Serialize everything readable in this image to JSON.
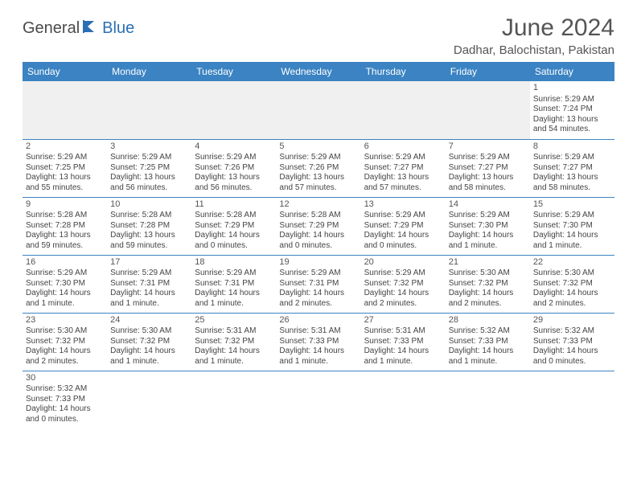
{
  "logo": {
    "text1": "General",
    "text2": "Blue"
  },
  "title": "June 2024",
  "location": "Dadhar, Balochistan, Pakistan",
  "colors": {
    "header_bg": "#3b83c2",
    "header_text": "#ffffff",
    "border": "#3b83c2",
    "text": "#444444",
    "logo_gray": "#4a4a4a",
    "logo_blue": "#2a6fb5",
    "empty_bg": "#f0f0f0"
  },
  "weekdays": [
    "Sunday",
    "Monday",
    "Tuesday",
    "Wednesday",
    "Thursday",
    "Friday",
    "Saturday"
  ],
  "grid": [
    [
      null,
      null,
      null,
      null,
      null,
      null,
      {
        "day": "1",
        "sunrise": "Sunrise: 5:29 AM",
        "sunset": "Sunset: 7:24 PM",
        "daylight": "Daylight: 13 hours and 54 minutes."
      }
    ],
    [
      {
        "day": "2",
        "sunrise": "Sunrise: 5:29 AM",
        "sunset": "Sunset: 7:25 PM",
        "daylight": "Daylight: 13 hours and 55 minutes."
      },
      {
        "day": "3",
        "sunrise": "Sunrise: 5:29 AM",
        "sunset": "Sunset: 7:25 PM",
        "daylight": "Daylight: 13 hours and 56 minutes."
      },
      {
        "day": "4",
        "sunrise": "Sunrise: 5:29 AM",
        "sunset": "Sunset: 7:26 PM",
        "daylight": "Daylight: 13 hours and 56 minutes."
      },
      {
        "day": "5",
        "sunrise": "Sunrise: 5:29 AM",
        "sunset": "Sunset: 7:26 PM",
        "daylight": "Daylight: 13 hours and 57 minutes."
      },
      {
        "day": "6",
        "sunrise": "Sunrise: 5:29 AM",
        "sunset": "Sunset: 7:27 PM",
        "daylight": "Daylight: 13 hours and 57 minutes."
      },
      {
        "day": "7",
        "sunrise": "Sunrise: 5:29 AM",
        "sunset": "Sunset: 7:27 PM",
        "daylight": "Daylight: 13 hours and 58 minutes."
      },
      {
        "day": "8",
        "sunrise": "Sunrise: 5:29 AM",
        "sunset": "Sunset: 7:27 PM",
        "daylight": "Daylight: 13 hours and 58 minutes."
      }
    ],
    [
      {
        "day": "9",
        "sunrise": "Sunrise: 5:28 AM",
        "sunset": "Sunset: 7:28 PM",
        "daylight": "Daylight: 13 hours and 59 minutes."
      },
      {
        "day": "10",
        "sunrise": "Sunrise: 5:28 AM",
        "sunset": "Sunset: 7:28 PM",
        "daylight": "Daylight: 13 hours and 59 minutes."
      },
      {
        "day": "11",
        "sunrise": "Sunrise: 5:28 AM",
        "sunset": "Sunset: 7:29 PM",
        "daylight": "Daylight: 14 hours and 0 minutes."
      },
      {
        "day": "12",
        "sunrise": "Sunrise: 5:28 AM",
        "sunset": "Sunset: 7:29 PM",
        "daylight": "Daylight: 14 hours and 0 minutes."
      },
      {
        "day": "13",
        "sunrise": "Sunrise: 5:29 AM",
        "sunset": "Sunset: 7:29 PM",
        "daylight": "Daylight: 14 hours and 0 minutes."
      },
      {
        "day": "14",
        "sunrise": "Sunrise: 5:29 AM",
        "sunset": "Sunset: 7:30 PM",
        "daylight": "Daylight: 14 hours and 1 minute."
      },
      {
        "day": "15",
        "sunrise": "Sunrise: 5:29 AM",
        "sunset": "Sunset: 7:30 PM",
        "daylight": "Daylight: 14 hours and 1 minute."
      }
    ],
    [
      {
        "day": "16",
        "sunrise": "Sunrise: 5:29 AM",
        "sunset": "Sunset: 7:30 PM",
        "daylight": "Daylight: 14 hours and 1 minute."
      },
      {
        "day": "17",
        "sunrise": "Sunrise: 5:29 AM",
        "sunset": "Sunset: 7:31 PM",
        "daylight": "Daylight: 14 hours and 1 minute."
      },
      {
        "day": "18",
        "sunrise": "Sunrise: 5:29 AM",
        "sunset": "Sunset: 7:31 PM",
        "daylight": "Daylight: 14 hours and 1 minute."
      },
      {
        "day": "19",
        "sunrise": "Sunrise: 5:29 AM",
        "sunset": "Sunset: 7:31 PM",
        "daylight": "Daylight: 14 hours and 2 minutes."
      },
      {
        "day": "20",
        "sunrise": "Sunrise: 5:29 AM",
        "sunset": "Sunset: 7:32 PM",
        "daylight": "Daylight: 14 hours and 2 minutes."
      },
      {
        "day": "21",
        "sunrise": "Sunrise: 5:30 AM",
        "sunset": "Sunset: 7:32 PM",
        "daylight": "Daylight: 14 hours and 2 minutes."
      },
      {
        "day": "22",
        "sunrise": "Sunrise: 5:30 AM",
        "sunset": "Sunset: 7:32 PM",
        "daylight": "Daylight: 14 hours and 2 minutes."
      }
    ],
    [
      {
        "day": "23",
        "sunrise": "Sunrise: 5:30 AM",
        "sunset": "Sunset: 7:32 PM",
        "daylight": "Daylight: 14 hours and 2 minutes."
      },
      {
        "day": "24",
        "sunrise": "Sunrise: 5:30 AM",
        "sunset": "Sunset: 7:32 PM",
        "daylight": "Daylight: 14 hours and 1 minute."
      },
      {
        "day": "25",
        "sunrise": "Sunrise: 5:31 AM",
        "sunset": "Sunset: 7:32 PM",
        "daylight": "Daylight: 14 hours and 1 minute."
      },
      {
        "day": "26",
        "sunrise": "Sunrise: 5:31 AM",
        "sunset": "Sunset: 7:33 PM",
        "daylight": "Daylight: 14 hours and 1 minute."
      },
      {
        "day": "27",
        "sunrise": "Sunrise: 5:31 AM",
        "sunset": "Sunset: 7:33 PM",
        "daylight": "Daylight: 14 hours and 1 minute."
      },
      {
        "day": "28",
        "sunrise": "Sunrise: 5:32 AM",
        "sunset": "Sunset: 7:33 PM",
        "daylight": "Daylight: 14 hours and 1 minute."
      },
      {
        "day": "29",
        "sunrise": "Sunrise: 5:32 AM",
        "sunset": "Sunset: 7:33 PM",
        "daylight": "Daylight: 14 hours and 0 minutes."
      }
    ],
    [
      {
        "day": "30",
        "sunrise": "Sunrise: 5:32 AM",
        "sunset": "Sunset: 7:33 PM",
        "daylight": "Daylight: 14 hours and 0 minutes."
      },
      null,
      null,
      null,
      null,
      null,
      null
    ]
  ]
}
